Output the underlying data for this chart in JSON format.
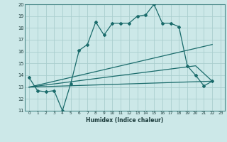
{
  "xlabel": "Humidex (Indice chaleur)",
  "bg_color": "#cce8e8",
  "grid_color": "#aacece",
  "line_color": "#1a6b6b",
  "xlim": [
    -0.5,
    23.5
  ],
  "ylim": [
    11,
    20
  ],
  "xticks": [
    0,
    1,
    2,
    3,
    4,
    5,
    6,
    7,
    8,
    9,
    10,
    11,
    12,
    13,
    14,
    15,
    16,
    17,
    18,
    19,
    20,
    21,
    22,
    23
  ],
  "yticks": [
    11,
    12,
    13,
    14,
    15,
    16,
    17,
    18,
    19,
    20
  ],
  "series": [
    {
      "x": [
        0,
        1,
        2,
        3,
        4,
        5,
        6,
        7,
        8,
        9,
        10,
        11,
        12,
        13,
        14,
        15,
        16,
        17,
        18,
        19,
        20,
        21,
        22
      ],
      "y": [
        13.8,
        12.7,
        12.6,
        12.7,
        11.0,
        13.3,
        16.1,
        16.6,
        18.5,
        17.4,
        18.4,
        18.4,
        18.4,
        19.0,
        19.1,
        20.0,
        18.4,
        18.4,
        18.1,
        14.8,
        14.0,
        13.1,
        13.5
      ],
      "marker": true
    },
    {
      "x": [
        0,
        22
      ],
      "y": [
        13.0,
        16.6
      ],
      "marker": false
    },
    {
      "x": [
        0,
        20,
        22
      ],
      "y": [
        13.0,
        14.8,
        13.5
      ],
      "marker": false
    },
    {
      "x": [
        0,
        22
      ],
      "y": [
        13.0,
        13.5
      ],
      "marker": false
    }
  ]
}
